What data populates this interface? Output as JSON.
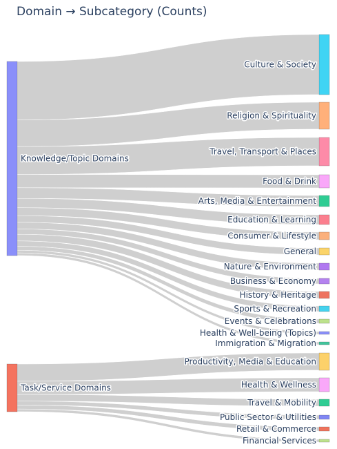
{
  "chart_data": {
    "type": "sankey",
    "title": "Domain → Subcategory (Counts)",
    "link_color": "#cccccc",
    "sources": [
      {
        "label": "Knowledge/Topic Domains",
        "color": "#8a8ffa"
      },
      {
        "label": "Task/Service Domains",
        "color": "#f4735f"
      }
    ],
    "targets": [
      {
        "label": "Culture & Society",
        "source": 0,
        "value": 44,
        "color": "#40d4f4"
      },
      {
        "label": "Religion & Spirituality",
        "source": 0,
        "value": 20,
        "color": "#ffb07a"
      },
      {
        "label": "Travel, Transport & Places",
        "source": 0,
        "value": 21,
        "color": "#fd8ba8"
      },
      {
        "label": "Food & Drink",
        "source": 0,
        "value": 10,
        "color": "#f9a7f9"
      },
      {
        "label": "Arts, Media & Entertainment",
        "source": 0,
        "value": 8,
        "color": "#2fcc93"
      },
      {
        "label": "Education & Learning",
        "source": 0,
        "value": 7,
        "color": "#fb7f8e"
      },
      {
        "label": "Consumer & Lifestyle",
        "source": 0,
        "value": 6,
        "color": "#fbb07c"
      },
      {
        "label": "General",
        "source": 0,
        "value": 5,
        "color": "#fbd46a"
      },
      {
        "label": "Nature & Environment",
        "source": 0,
        "value": 5,
        "color": "#b078f0"
      },
      {
        "label": "Business & Economy",
        "source": 0,
        "value": 4,
        "color": "#b482ef"
      },
      {
        "label": "History & Heritage",
        "source": 0,
        "value": 5,
        "color": "#ee7360"
      },
      {
        "label": "Sports & Recreation",
        "source": 0,
        "value": 4,
        "color": "#44d2ee"
      },
      {
        "label": "Events & Celebrations",
        "source": 0,
        "value": 3,
        "color": "#bde28c"
      },
      {
        "label": "Health & Well-being (Topics)",
        "source": 0,
        "value": 2,
        "color": "#8a8ffa"
      },
      {
        "label": "Immigration & Migration",
        "source": 0,
        "value": 2,
        "color": "#41c59c"
      },
      {
        "label": "Productivity, Media & Education",
        "source": 1,
        "value": 13,
        "color": "#fcd16a"
      },
      {
        "label": "Health & Wellness",
        "source": 1,
        "value": 10,
        "color": "#f9a8f9"
      },
      {
        "label": "Travel & Mobility",
        "source": 1,
        "value": 5,
        "color": "#2fcc93"
      },
      {
        "label": "Public Sector & Utilities",
        "source": 1,
        "value": 3,
        "color": "#8086f4"
      },
      {
        "label": "Retail & Commerce",
        "source": 1,
        "value": 3,
        "color": "#ef735c"
      },
      {
        "label": "Financial Services",
        "source": 1,
        "value": 2,
        "color": "#bde28c"
      }
    ]
  }
}
